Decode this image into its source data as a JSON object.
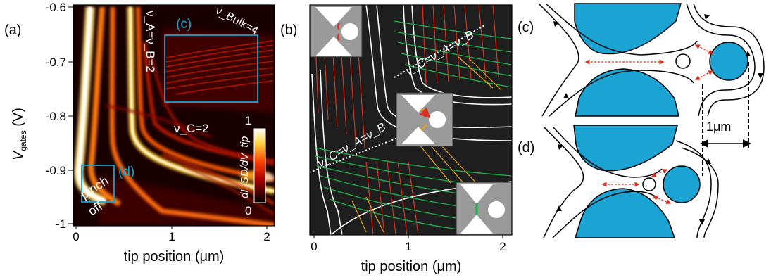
{
  "panels": {
    "a": {
      "letter": "(a)",
      "ylabel_main": "V",
      "ylabel_sub": "gates",
      "ylabel_unit": " (V)",
      "xlabel": "tip position (μm)",
      "yticks": [
        "-0.6",
        "-0.7",
        "-0.8",
        "-0.9",
        "-1"
      ],
      "xticks": [
        "0",
        "1",
        "2"
      ],
      "box_c_label": "(c)",
      "box_d_label": "(d)",
      "nu_ab": "ν_A=ν_B=2",
      "nu_bulk": "ν_Bulk=4",
      "nu_c": "ν_C=2",
      "pinch": "pinch",
      "off": "off",
      "colorbar_max": "1",
      "colorbar_min": "0",
      "colorbar_label": "dI_SD/dV_tip"
    },
    "b": {
      "letter": "(b)",
      "xlabel": "tip position (μm)",
      "xticks": [
        "0",
        "1",
        "2"
      ],
      "nu_upper": "ν_C=ν_A=ν_B",
      "nu_lower": "ν_C=ν_A=ν_B"
    },
    "c": {
      "letter": "(c)",
      "scale": "1μm"
    },
    "d": {
      "letter": "(d)"
    }
  },
  "colors": {
    "accent": "#1a9fcc",
    "gate": "#1ba3d3",
    "map_bg": "#180000",
    "panel_b_bg": "#1e1e1e",
    "red_line": "#d8321e",
    "green_line": "#1db34a",
    "orange_line": "#e3a21a"
  }
}
